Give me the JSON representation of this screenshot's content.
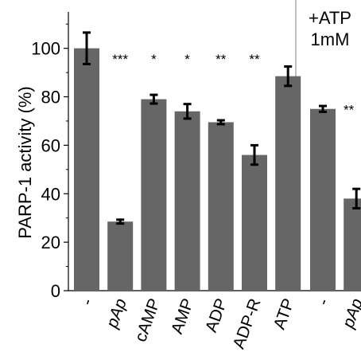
{
  "chart_data": {
    "type": "bar",
    "ylabel": "PARP-1 activity (%)",
    "xlabel": "",
    "ylim": [
      0,
      115
    ],
    "yticks": [
      0,
      20,
      40,
      60,
      80,
      100
    ],
    "grid": false,
    "bar_color": "#666666",
    "panels": [
      {
        "note": "",
        "categories": [
          {
            "label": "-",
            "italic": false
          },
          {
            "label": "pAp",
            "italic": true
          },
          {
            "label": "cAMP",
            "italic": false
          },
          {
            "label": "AMP",
            "italic": false
          },
          {
            "label": "ADP",
            "italic": false
          },
          {
            "label": "ADP-R",
            "italic": false
          },
          {
            "label": "ATP",
            "italic": false
          }
        ],
        "values": [
          100,
          28.5,
          79,
          74,
          69.5,
          56,
          88.5
        ],
        "errors": [
          6.5,
          0.8,
          1.8,
          3,
          0.8,
          4,
          4
        ],
        "significance": [
          "",
          "***",
          "*",
          "*",
          "**",
          "**",
          ""
        ]
      },
      {
        "note": "+ATP\n1mM",
        "categories": [
          {
            "label": "-",
            "italic": false
          },
          {
            "label": "pAp",
            "italic": true
          }
        ],
        "values": [
          75,
          38
        ],
        "errors": [
          1.2,
          4
        ],
        "significance": [
          "**",
          ""
        ]
      }
    ]
  }
}
